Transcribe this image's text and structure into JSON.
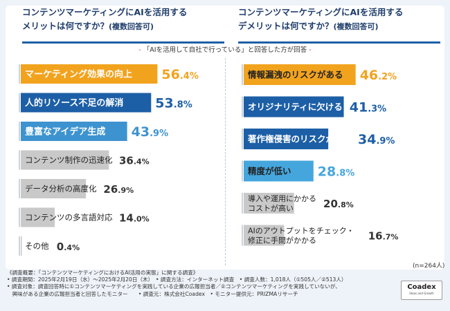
{
  "header_left": {
    "line1": "コンテンツマーケティングにAIを活用する",
    "line2": "メリットは何ですか？",
    "line2_note": "(複数回答可)"
  },
  "header_right": {
    "line1": "コンテンツマーケティングにAIを活用する",
    "line2": "デメリットは何ですか？",
    "line2_note": "(複数回答可)"
  },
  "subtitle": {
    "text": "「AIを活用して自社で行っている」と回答した方が回答",
    "open_mark": "-",
    "close_mark": "-"
  },
  "chart_data": [
    {
      "type": "bar",
      "orientation": "horizontal",
      "title": "コンテンツマーケティングにAIを活用するメリットは何ですか？(複数回答可)",
      "unit": "%",
      "categories": [
        "マーケティング効果の向上",
        "人的リソース不足の解消",
        "豊富なアイデア生成",
        "コンテンツ制作の迅速化",
        "データ分析の高度化",
        "コンテンツの多言語対応",
        "その他"
      ],
      "values": [
        56.4,
        53.8,
        43.9,
        36.4,
        26.9,
        14.0,
        0.4
      ],
      "value_int": [
        "56",
        "53",
        "43",
        "36",
        "26",
        "14",
        "0"
      ],
      "value_dec": [
        ".4",
        ".8",
        ".9",
        ".4",
        ".9",
        ".0",
        ".4"
      ],
      "colors": [
        "#f2a31e",
        "#1d5fa6",
        "#3d93cf",
        "#c9c9c9",
        "#c9c9c9",
        "#c9c9c9",
        "#c9c9c9"
      ],
      "label_colors": [
        "#ffffff",
        "#ffffff",
        "#ffffff",
        "#222222",
        "#222222",
        "#222222",
        "#222222"
      ],
      "value_colors": [
        "#f2a31e",
        "#1d5fa6",
        "#3d93cf",
        "#333333",
        "#333333",
        "#333333",
        "#333333"
      ]
    },
    {
      "type": "bar",
      "orientation": "horizontal",
      "title": "コンテンツマーケティングにAIを活用するデメリットは何ですか？(複数回答可)",
      "unit": "%",
      "categories": [
        "情報漏洩のリスクがある",
        "オリジナリティに欠ける",
        "著作権侵害のリスクがある",
        "精度が低い",
        "導入や運用にかかる\nコストが高い",
        "AIのアウトプットをチェック・\n修正に手間がかかる"
      ],
      "values": [
        46.2,
        41.3,
        34.9,
        28.8,
        20.8,
        16.7
      ],
      "value_int": [
        "46",
        "41",
        "34",
        "28",
        "20",
        "16"
      ],
      "value_dec": [
        ".2",
        ".3",
        ".9",
        ".8",
        ".8",
        ".7"
      ],
      "colors": [
        "#f2a31e",
        "#1d5fa6",
        "#1d5fa6",
        "#45a6dd",
        "#c9c9c9",
        "#c9c9c9"
      ],
      "label_colors": [
        "#222222",
        "#ffffff",
        "#ffffff",
        "#222222",
        "#222222",
        "#222222"
      ],
      "value_colors": [
        "#f2a31e",
        "#1d5fa6",
        "#1d5fa6",
        "#45a6dd",
        "#333333",
        "#333333"
      ]
    }
  ],
  "sample_size": "(n=264人)",
  "percent_sign": "%",
  "footer": {
    "line1": "《調査概要：「コンテンツマーケティングにおけるAI活用の実態」に関する調査》",
    "line2": "• 調査期間：2025年2月19日（水）～2025年2月20日（木）　• 調査方法：インターネット調査　• 調査人数：1,018人（①505人／②513人）",
    "line3": "• 調査対象：調査回答時に①コンテンツマーケティングを実践している企業の広報担当者／②コンテンツマーケティングを実践していないが、",
    "line4": "　興味がある企業の広報担当者と回答したモニター　　• 調査元：株式会社Coadex　• モニター提供元：PRIZMAリサーチ"
  },
  "logo": {
    "name": "Coadex",
    "tagline": "Ideas and Growth"
  }
}
